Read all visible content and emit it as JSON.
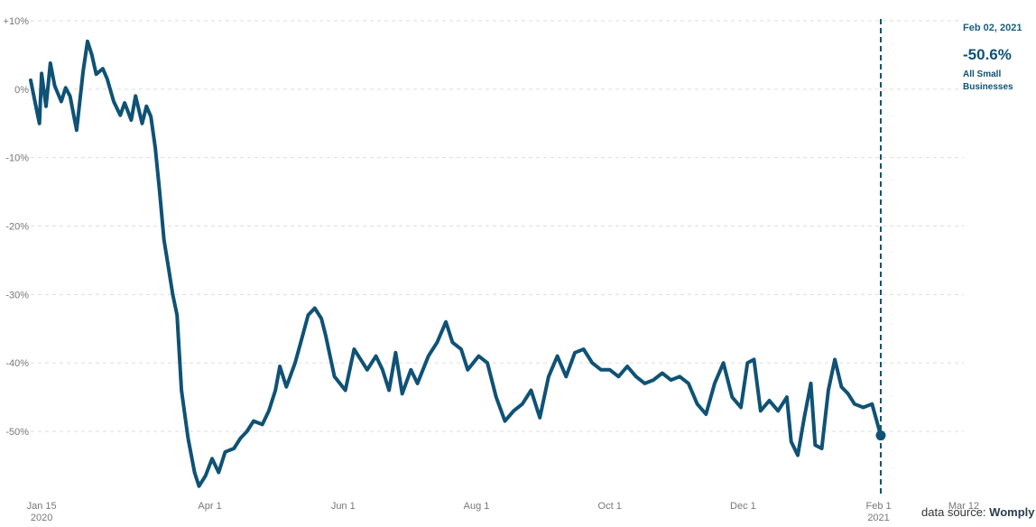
{
  "chart_data": {
    "type": "line",
    "title": "",
    "xlabel": "",
    "ylabel": "",
    "ylim": [
      -58,
      11
    ],
    "y_ticks": [
      {
        "value": 10,
        "label": "+10%"
      },
      {
        "value": 0,
        "label": "0%"
      },
      {
        "value": -10,
        "label": "-10%"
      },
      {
        "value": -20,
        "label": "-20%"
      },
      {
        "value": -30,
        "label": "-30%"
      },
      {
        "value": -40,
        "label": "-40%"
      },
      {
        "value": -50,
        "label": "-50%"
      }
    ],
    "x_range": [
      "2020-01-10",
      "2021-03-12"
    ],
    "x_ticks": [
      {
        "date": "2020-01-15",
        "label": "Jan 15",
        "sublabel": "2020"
      },
      {
        "date": "2020-04-01",
        "label": "Apr 1",
        "sublabel": ""
      },
      {
        "date": "2020-06-01",
        "label": "Jun 1",
        "sublabel": ""
      },
      {
        "date": "2020-08-01",
        "label": "Aug 1",
        "sublabel": ""
      },
      {
        "date": "2020-10-01",
        "label": "Oct 1",
        "sublabel": ""
      },
      {
        "date": "2020-12-01",
        "label": "Dec 1",
        "sublabel": ""
      },
      {
        "date": "2021-02-01",
        "label": "Feb 1",
        "sublabel": "2021"
      },
      {
        "date": "2021-03-12",
        "label": "Mar 12",
        "sublabel": ""
      }
    ],
    "grid": true,
    "series": [
      {
        "color": "#0f5275",
        "points": [
          [
            "2020-01-10",
            1.3
          ],
          [
            "2020-01-13",
            -3.5
          ],
          [
            "2020-01-14",
            -5.0
          ],
          [
            "2020-01-15",
            2.3
          ],
          [
            "2020-01-17",
            -2.5
          ],
          [
            "2020-01-19",
            3.8
          ],
          [
            "2020-01-21",
            0.5
          ],
          [
            "2020-01-24",
            -1.8
          ],
          [
            "2020-01-26",
            0.2
          ],
          [
            "2020-01-28",
            -1.0
          ],
          [
            "2020-01-31",
            -6.0
          ],
          [
            "2020-02-03",
            2.6
          ],
          [
            "2020-02-05",
            7.0
          ],
          [
            "2020-02-07",
            5.0
          ],
          [
            "2020-02-09",
            2.2
          ],
          [
            "2020-02-12",
            3.0
          ],
          [
            "2020-02-14",
            1.5
          ],
          [
            "2020-02-17",
            -1.8
          ],
          [
            "2020-02-20",
            -3.8
          ],
          [
            "2020-02-22",
            -2.0
          ],
          [
            "2020-02-25",
            -4.5
          ],
          [
            "2020-02-27",
            -1.0
          ],
          [
            "2020-03-01",
            -5.0
          ],
          [
            "2020-03-03",
            -2.5
          ],
          [
            "2020-03-05",
            -4.0
          ],
          [
            "2020-03-07",
            -8.5
          ],
          [
            "2020-03-09",
            -15.0
          ],
          [
            "2020-03-11",
            -22.0
          ],
          [
            "2020-03-13",
            -26.0
          ],
          [
            "2020-03-15",
            -30.0
          ],
          [
            "2020-03-17",
            -33.0
          ],
          [
            "2020-03-19",
            -44.0
          ],
          [
            "2020-03-22",
            -51.0
          ],
          [
            "2020-03-25",
            -56.0
          ],
          [
            "2020-03-27",
            -58.0
          ],
          [
            "2020-03-30",
            -56.5
          ],
          [
            "2020-04-02",
            -54.0
          ],
          [
            "2020-04-05",
            -56.0
          ],
          [
            "2020-04-08",
            -53.0
          ],
          [
            "2020-04-12",
            -52.5
          ],
          [
            "2020-04-15",
            -51.0
          ],
          [
            "2020-04-18",
            -50.0
          ],
          [
            "2020-04-21",
            -48.5
          ],
          [
            "2020-04-25",
            -49.0
          ],
          [
            "2020-04-28",
            -47.0
          ],
          [
            "2020-05-01",
            -44.0
          ],
          [
            "2020-05-03",
            -40.5
          ],
          [
            "2020-05-06",
            -43.5
          ],
          [
            "2020-05-10",
            -40.0
          ],
          [
            "2020-05-13",
            -36.5
          ],
          [
            "2020-05-16",
            -33.0
          ],
          [
            "2020-05-19",
            -32.0
          ],
          [
            "2020-05-22",
            -33.5
          ],
          [
            "2020-05-24",
            -36.0
          ],
          [
            "2020-05-28",
            -42.0
          ],
          [
            "2020-06-02",
            -44.0
          ],
          [
            "2020-06-06",
            -38.0
          ],
          [
            "2020-06-09",
            -39.5
          ],
          [
            "2020-06-12",
            -41.0
          ],
          [
            "2020-06-16",
            -39.0
          ],
          [
            "2020-06-19",
            -41.0
          ],
          [
            "2020-06-22",
            -44.0
          ],
          [
            "2020-06-25",
            -38.5
          ],
          [
            "2020-06-28",
            -44.5
          ],
          [
            "2020-07-02",
            -41.0
          ],
          [
            "2020-07-05",
            -43.0
          ],
          [
            "2020-07-10",
            -39.0
          ],
          [
            "2020-07-14",
            -37.0
          ],
          [
            "2020-07-18",
            -34.0
          ],
          [
            "2020-07-21",
            -37.0
          ],
          [
            "2020-07-25",
            -38.0
          ],
          [
            "2020-07-28",
            -41.0
          ],
          [
            "2020-08-02",
            -39.0
          ],
          [
            "2020-08-06",
            -40.0
          ],
          [
            "2020-08-10",
            -45.0
          ],
          [
            "2020-08-14",
            -48.5
          ],
          [
            "2020-08-18",
            -47.0
          ],
          [
            "2020-08-22",
            -46.0
          ],
          [
            "2020-08-26",
            -44.0
          ],
          [
            "2020-08-30",
            -48.0
          ],
          [
            "2020-09-03",
            -42.0
          ],
          [
            "2020-09-07",
            -39.0
          ],
          [
            "2020-09-11",
            -42.0
          ],
          [
            "2020-09-15",
            -38.5
          ],
          [
            "2020-09-19",
            -38.0
          ],
          [
            "2020-09-23",
            -40.0
          ],
          [
            "2020-09-27",
            -41.0
          ],
          [
            "2020-10-01",
            -41.0
          ],
          [
            "2020-10-05",
            -42.0
          ],
          [
            "2020-10-09",
            -40.5
          ],
          [
            "2020-10-13",
            -42.0
          ],
          [
            "2020-10-17",
            -43.0
          ],
          [
            "2020-10-21",
            -42.5
          ],
          [
            "2020-10-25",
            -41.5
          ],
          [
            "2020-10-29",
            -42.5
          ],
          [
            "2020-11-02",
            -42.0
          ],
          [
            "2020-11-06",
            -43.0
          ],
          [
            "2020-11-10",
            -46.0
          ],
          [
            "2020-11-14",
            -47.5
          ],
          [
            "2020-11-18",
            -43.0
          ],
          [
            "2020-11-22",
            -40.0
          ],
          [
            "2020-11-26",
            -45.0
          ],
          [
            "2020-11-30",
            -46.5
          ],
          [
            "2020-12-03",
            -40.0
          ],
          [
            "2020-12-06",
            -39.5
          ],
          [
            "2020-12-09",
            -47.0
          ],
          [
            "2020-12-13",
            -45.5
          ],
          [
            "2020-12-17",
            -47.0
          ],
          [
            "2020-12-21",
            -45.0
          ],
          [
            "2020-12-23",
            -51.5
          ],
          [
            "2020-12-26",
            -53.5
          ],
          [
            "2020-12-29",
            -48.0
          ],
          [
            "2021-01-01",
            -43.0
          ],
          [
            "2021-01-03",
            -52.0
          ],
          [
            "2021-01-06",
            -52.5
          ],
          [
            "2021-01-09",
            -44.0
          ],
          [
            "2021-01-12",
            -39.5
          ],
          [
            "2021-01-15",
            -43.5
          ],
          [
            "2021-01-18",
            -44.5
          ],
          [
            "2021-01-21",
            -46.0
          ],
          [
            "2021-01-25",
            -46.5
          ],
          [
            "2021-01-29",
            -46.0
          ],
          [
            "2021-02-02",
            -50.6
          ]
        ]
      }
    ],
    "marker": {
      "date": "2021-02-02",
      "value": -50.6
    }
  },
  "annotation": {
    "date": "Feb 02, 2021",
    "value": "-50.6%",
    "label": "All Small Businesses"
  },
  "source": {
    "prefix": "data source:",
    "name": "Womply"
  },
  "colors": {
    "line": "#0f5275",
    "grid": "#dddddd",
    "text": "#777777"
  }
}
